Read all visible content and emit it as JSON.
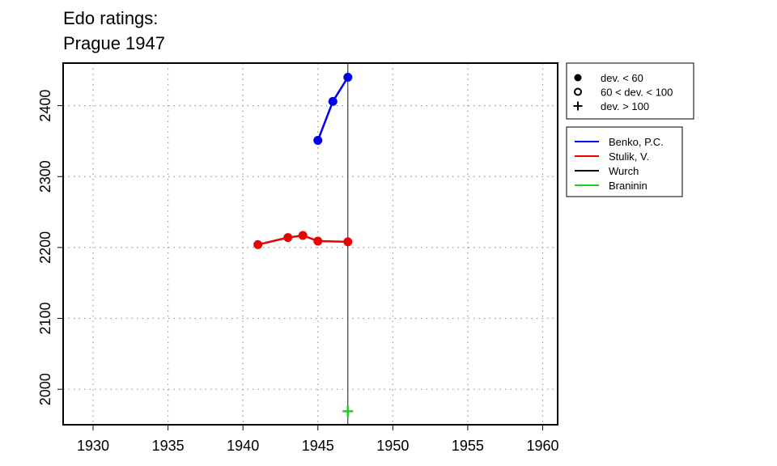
{
  "chart_data": {
    "type": "line",
    "title_lines": [
      "Edo ratings:",
      "Prague 1947"
    ],
    "xlabel": "",
    "ylabel": "",
    "xlim": [
      1928,
      1961
    ],
    "ylim": [
      1950,
      2460
    ],
    "x_ticks": [
      1930,
      1935,
      1940,
      1945,
      1950,
      1955,
      1960
    ],
    "y_ticks": [
      2000,
      2100,
      2200,
      2300,
      2400
    ],
    "grid": true,
    "reference_line_x": 1947,
    "marker_legend": [
      {
        "symbol": "filled-circle",
        "label": "dev. < 60"
      },
      {
        "symbol": "open-circle",
        "label": "60 < dev. < 100"
      },
      {
        "symbol": "plus",
        "label": "dev. > 100"
      }
    ],
    "series": [
      {
        "name": "Benko, P.C.",
        "color": "#0000ee",
        "points": [
          {
            "x": 1945,
            "y": 2351,
            "marker": "filled-circle"
          },
          {
            "x": 1946,
            "y": 2406,
            "marker": "filled-circle"
          },
          {
            "x": 1947,
            "y": 2440,
            "marker": "filled-circle"
          }
        ]
      },
      {
        "name": "Stulik, V.",
        "color": "#ee0000",
        "points": [
          {
            "x": 1941,
            "y": 2204,
            "marker": "filled-circle"
          },
          {
            "x": 1943,
            "y": 2214,
            "marker": "filled-circle"
          },
          {
            "x": 1944,
            "y": 2217,
            "marker": "filled-circle"
          },
          {
            "x": 1945,
            "y": 2209,
            "marker": "filled-circle"
          },
          {
            "x": 1947,
            "y": 2208,
            "marker": "filled-circle"
          }
        ]
      },
      {
        "name": "Wurch",
        "color": "#000000",
        "points": []
      },
      {
        "name": "Braninin",
        "color": "#22cc22",
        "points": [
          {
            "x": 1947,
            "y": 1969,
            "marker": "plus"
          }
        ]
      }
    ]
  }
}
